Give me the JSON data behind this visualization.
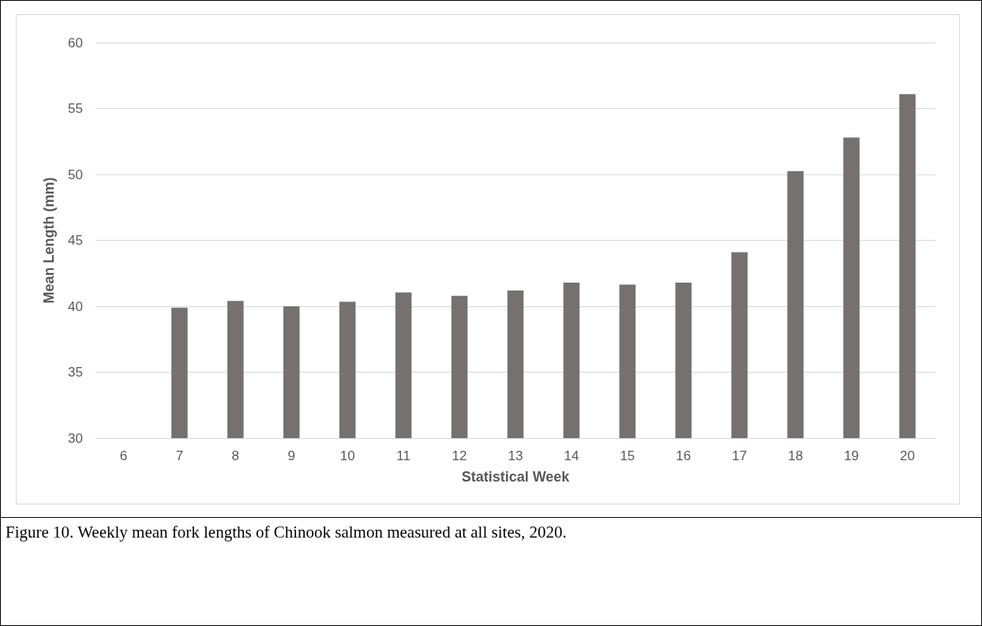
{
  "chart_data": {
    "type": "bar",
    "xlabel": "Statistical Week",
    "ylabel": "Mean Length (mm)",
    "categories": [
      "6",
      "7",
      "8",
      "9",
      "10",
      "11",
      "12",
      "13",
      "14",
      "15",
      "16",
      "17",
      "18",
      "19",
      "20"
    ],
    "values": [
      null,
      39.9,
      40.4,
      40.0,
      40.35,
      41.05,
      40.8,
      41.2,
      41.8,
      41.65,
      41.8,
      44.1,
      50.25,
      52.8,
      56.1
    ],
    "color": "#767171",
    "ylim": [
      30,
      60
    ],
    "yticks": [
      30,
      35,
      40,
      45,
      50,
      55,
      60
    ],
    "grid": "y",
    "annotations": [
      "Figure 10. Weekly mean fork lengths of Chinook salmon measured at all sites, 2020."
    ]
  }
}
